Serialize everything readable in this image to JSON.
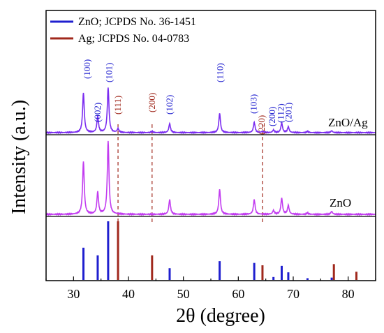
{
  "chart_data": {
    "type": "line",
    "xlabel": "2θ (degree)",
    "ylabel": "Intensity (a.u.)",
    "xlim": [
      25,
      85
    ],
    "xticks": [
      30,
      40,
      50,
      60,
      70,
      80
    ],
    "grid": false,
    "legend": {
      "placement": "top-left",
      "entries": [
        {
          "label": "ZnO; JCPDS No. 36-1451",
          "color": "#1f1fcf"
        },
        {
          "label": "Ag; JCPDS No. 04-0783",
          "color": "#a0281c"
        }
      ]
    },
    "reference_lines": [
      {
        "name": "ZnO",
        "color": "#1f1fcf",
        "x": [
          31.8,
          34.4,
          36.3,
          47.5,
          56.6,
          62.9,
          66.4,
          67.9,
          69.1,
          72.6,
          77.0
        ],
        "y": [
          0.55,
          0.42,
          1.0,
          0.2,
          0.32,
          0.29,
          0.05,
          0.24,
          0.13,
          0.03,
          0.04
        ]
      },
      {
        "name": "Ag",
        "color": "#a0281c",
        "x": [
          38.1,
          44.3,
          64.4,
          77.4,
          81.5
        ],
        "y": [
          1.0,
          0.42,
          0.25,
          0.27,
          0.14
        ]
      }
    ],
    "series": [
      {
        "name": "ZnO/Ag",
        "color": "#7b2cf0",
        "peaks": [
          {
            "x": 31.8,
            "h": 0.62
          },
          {
            "x": 34.4,
            "h": 0.25
          },
          {
            "x": 36.3,
            "h": 0.7
          },
          {
            "x": 38.1,
            "h": 0.06
          },
          {
            "x": 44.3,
            "h": 0.02
          },
          {
            "x": 47.5,
            "h": 0.14
          },
          {
            "x": 56.6,
            "h": 0.3
          },
          {
            "x": 62.9,
            "h": 0.16
          },
          {
            "x": 64.4,
            "h": 0.02
          },
          {
            "x": 66.4,
            "h": 0.04
          },
          {
            "x": 67.9,
            "h": 0.15
          },
          {
            "x": 69.1,
            "h": 0.09
          },
          {
            "x": 72.6,
            "h": 0.02
          },
          {
            "x": 77.0,
            "h": 0.03
          }
        ]
      },
      {
        "name": "ZnO",
        "color": "#c23bf0",
        "peaks": [
          {
            "x": 31.8,
            "h": 0.72
          },
          {
            "x": 34.4,
            "h": 0.3
          },
          {
            "x": 36.3,
            "h": 1.0
          },
          {
            "x": 47.5,
            "h": 0.2
          },
          {
            "x": 56.6,
            "h": 0.34
          },
          {
            "x": 62.9,
            "h": 0.2
          },
          {
            "x": 66.4,
            "h": 0.05
          },
          {
            "x": 67.9,
            "h": 0.22
          },
          {
            "x": 69.1,
            "h": 0.12
          },
          {
            "x": 72.6,
            "h": 0.02
          },
          {
            "x": 77.0,
            "h": 0.04
          }
        ]
      }
    ],
    "peak_labels": [
      {
        "text": "(100)",
        "x": 31.8,
        "color": "#1f1fcf"
      },
      {
        "text": "(002)",
        "x": 34.4,
        "color": "#1f1fcf"
      },
      {
        "text": "(101)",
        "x": 36.3,
        "color": "#1f1fcf"
      },
      {
        "text": "(111)",
        "x": 38.1,
        "color": "#a0281c"
      },
      {
        "text": "(200)",
        "x": 44.3,
        "color": "#a0281c"
      },
      {
        "text": "(102)",
        "x": 47.5,
        "color": "#1f1fcf"
      },
      {
        "text": "(110)",
        "x": 56.6,
        "color": "#1f1fcf"
      },
      {
        "text": "(103)",
        "x": 62.9,
        "color": "#1f1fcf"
      },
      {
        "text": "(220)",
        "x": 64.4,
        "color": "#a0281c"
      },
      {
        "text": "(200)",
        "x": 66.4,
        "color": "#1f1fcf"
      },
      {
        "text": "(112)",
        "x": 67.9,
        "color": "#1f1fcf"
      },
      {
        "text": "(201)",
        "x": 69.1,
        "color": "#1f1fcf"
      }
    ],
    "annotations": [
      {
        "text": "ZnO/Ag",
        "series": "ZnO/Ag"
      },
      {
        "text": "ZnO",
        "series": "ZnO"
      }
    ],
    "dashed_lines": [
      {
        "x": 38.1,
        "color": "#a0281c"
      },
      {
        "x": 44.3,
        "color": "#a0281c"
      },
      {
        "x": 64.4,
        "color": "#a0281c"
      }
    ]
  }
}
